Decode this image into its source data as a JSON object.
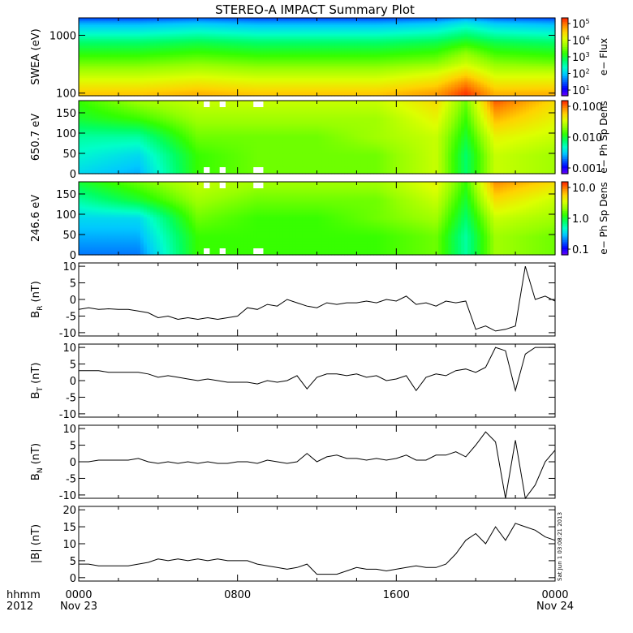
{
  "title": "STEREO-A IMPACT Summary Plot",
  "x_axis": {
    "row1_labels": [
      "hhmm",
      "0000",
      "0800",
      "1600",
      "0000"
    ],
    "row2_labels": [
      "2012",
      "Nov 23",
      "",
      "",
      "Nov 24"
    ],
    "range_hours": [
      0,
      24
    ],
    "major_ticks_hours": [
      0,
      8,
      16,
      24
    ]
  },
  "timestamp": "Sat Jun 1 03:08:21 2013",
  "colors": {
    "colormap": [
      "#6a00ff",
      "#0000ff",
      "#0064ff",
      "#00c8ff",
      "#00ffc8",
      "#00ff64",
      "#32ff00",
      "#96ff00",
      "#dcff00",
      "#ffd200",
      "#ff8200",
      "#ff1e00"
    ],
    "line": "#000000",
    "gap_fill": "#ffffff"
  },
  "chart_data": [
    {
      "type": "heatmap",
      "ylabel": "SWEA (eV)",
      "yscale": "log",
      "ylim": [
        90,
        2000
      ],
      "yticks": [
        "1000",
        "100"
      ],
      "yticks_values": [
        1000,
        100
      ],
      "colorbar": {
        "label": "e− Flux",
        "scale": "log",
        "range": [
          10,
          100000
        ],
        "ticks": [
          {
            "base": "10",
            "exp": "5"
          },
          {
            "base": "10",
            "exp": "4"
          },
          {
            "base": "10",
            "exp": "3"
          },
          {
            "base": "10",
            "exp": "2"
          },
          {
            "base": "10",
            "exp": "1"
          }
        ]
      },
      "energy_levels_eV": [
        100,
        150,
        220,
        330,
        500,
        750,
        1100,
        1600,
        2000
      ],
      "time_hours": [
        0,
        3,
        6,
        9,
        12,
        15,
        18,
        19.5,
        21,
        24
      ],
      "log_flux": [
        [
          4.3,
          4.3,
          4.4,
          4.3,
          4.3,
          4.3,
          4.5,
          4.9,
          4.4,
          4.4
        ],
        [
          4.0,
          4.0,
          4.1,
          4.0,
          4.0,
          4.0,
          4.2,
          4.6,
          4.1,
          4.1
        ],
        [
          3.7,
          3.7,
          3.8,
          3.7,
          3.7,
          3.7,
          3.9,
          4.2,
          3.8,
          3.8
        ],
        [
          3.4,
          3.4,
          3.5,
          3.4,
          3.4,
          3.4,
          3.5,
          3.8,
          3.5,
          3.4
        ],
        [
          3.1,
          3.1,
          3.2,
          3.1,
          3.1,
          3.1,
          3.2,
          3.5,
          3.2,
          3.1
        ],
        [
          2.8,
          2.8,
          2.9,
          2.8,
          2.8,
          2.8,
          2.9,
          3.1,
          2.9,
          2.8
        ],
        [
          2.4,
          2.4,
          2.5,
          2.4,
          2.4,
          2.4,
          2.5,
          2.7,
          2.5,
          2.4
        ],
        [
          2.0,
          2.0,
          2.1,
          2.0,
          2.0,
          2.0,
          2.1,
          2.3,
          2.1,
          2.0
        ],
        [
          1.6,
          1.6,
          1.7,
          1.6,
          1.6,
          1.6,
          1.7,
          1.9,
          1.7,
          1.6
        ]
      ]
    },
    {
      "type": "heatmap",
      "ylabel": "650.7 eV",
      "ylim": [
        0,
        180
      ],
      "yticks": [
        "150",
        "100",
        "50",
        "0"
      ],
      "yticks_values": [
        150,
        100,
        50,
        0
      ],
      "colorbar": {
        "label": "e− Ph Sp Dens",
        "scale": "log",
        "range": [
          0.001,
          0.1
        ],
        "ticks": [
          "0.100",
          "0.010",
          "0.001"
        ]
      },
      "pitch_angle_deg": [
        0,
        45,
        90,
        135,
        180
      ],
      "time_hours": [
        0,
        3,
        6,
        9,
        12,
        15,
        18,
        19.5,
        21,
        24
      ],
      "log_density": [
        [
          -2.4,
          -2.5,
          -1.9,
          -1.8,
          -1.8,
          -1.8,
          -1.6,
          -2.1,
          -1.6,
          -1.7
        ],
        [
          -2.3,
          -2.4,
          -1.9,
          -1.8,
          -1.8,
          -1.8,
          -1.6,
          -2.1,
          -1.6,
          -1.7
        ],
        [
          -2.2,
          -2.2,
          -1.8,
          -1.8,
          -1.8,
          -1.7,
          -1.6,
          -2.0,
          -1.5,
          -1.6
        ],
        [
          -2.0,
          -1.9,
          -1.7,
          -1.7,
          -1.7,
          -1.7,
          -1.5,
          -1.9,
          -1.3,
          -1.5
        ],
        [
          -1.9,
          -1.7,
          -1.6,
          -1.6,
          -1.6,
          -1.6,
          -1.4,
          -1.8,
          -1.1,
          -1.4
        ]
      ]
    },
    {
      "type": "heatmap",
      "ylabel": "246.6 eV",
      "ylim": [
        0,
        180
      ],
      "yticks": [
        "150",
        "100",
        "50",
        "0"
      ],
      "yticks_values": [
        150,
        100,
        50,
        0
      ],
      "colorbar": {
        "label": "e− Ph Sp Dens",
        "scale": "log",
        "range": [
          0.1,
          10
        ],
        "ticks": [
          "10.0",
          "1.0",
          "0.1"
        ]
      },
      "pitch_angle_deg": [
        0,
        45,
        90,
        135,
        180
      ],
      "time_hours": [
        0,
        3,
        6,
        9,
        12,
        15,
        18,
        19.5,
        21,
        24
      ],
      "log_density": [
        [
          -0.6,
          -0.6,
          0.1,
          0.1,
          0.1,
          0.1,
          0.2,
          -0.2,
          0.3,
          0.2
        ],
        [
          -0.5,
          -0.5,
          0.1,
          0.1,
          0.1,
          0.1,
          0.2,
          -0.2,
          0.3,
          0.2
        ],
        [
          -0.4,
          -0.4,
          0.2,
          0.1,
          0.1,
          0.2,
          0.3,
          -0.1,
          0.4,
          0.3
        ],
        [
          -0.2,
          0.0,
          0.3,
          0.2,
          0.2,
          0.2,
          0.4,
          0.0,
          0.6,
          0.4
        ],
        [
          0.0,
          0.2,
          0.4,
          0.3,
          0.3,
          0.3,
          0.5,
          0.1,
          0.8,
          0.6
        ]
      ]
    },
    {
      "type": "line",
      "ylabel": "B",
      "ylabel_sub": "R",
      "ylabel_unit": " (nT)",
      "ylim": [
        -11,
        11
      ],
      "yticks": [
        "10",
        "5",
        "0",
        "-5",
        "-10"
      ],
      "yticks_values": [
        10,
        5,
        0,
        -5,
        -10
      ],
      "x": [
        0,
        0.5,
        1,
        1.5,
        2,
        2.5,
        3,
        3.5,
        4,
        4.5,
        5,
        5.5,
        6,
        6.5,
        7,
        7.5,
        8,
        8.5,
        9,
        9.5,
        10,
        10.5,
        11,
        11.5,
        12,
        12.5,
        13,
        13.5,
        14,
        14.5,
        15,
        15.5,
        16,
        16.5,
        17,
        17.5,
        18,
        18.5,
        19,
        19.5,
        20,
        20.5,
        21,
        21.5,
        22,
        22.5,
        23,
        23.5,
        24
      ],
      "values": [
        -3,
        -2.5,
        -3,
        -2.8,
        -3,
        -3,
        -3.5,
        -4,
        -5.5,
        -5,
        -6,
        -5.5,
        -6,
        -5.5,
        -6,
        -5.5,
        -5,
        -2.5,
        -3,
        -1.5,
        -2,
        0,
        -1,
        -2,
        -2.5,
        -1,
        -1.5,
        -1,
        -1,
        -0.5,
        -1,
        0,
        -0.5,
        1,
        -1.5,
        -1,
        -2,
        -0.5,
        -1,
        -0.5,
        -9,
        -8,
        -9.5,
        -9,
        -8,
        10,
        0,
        1,
        -0.5
      ]
    },
    {
      "type": "line",
      "ylabel": "B",
      "ylabel_sub": "T",
      "ylabel_unit": " (nT)",
      "ylim": [
        -11,
        11
      ],
      "yticks": [
        "10",
        "5",
        "0",
        "-5",
        "-10"
      ],
      "yticks_values": [
        10,
        5,
        0,
        -5,
        -10
      ],
      "x": [
        0,
        0.5,
        1,
        1.5,
        2,
        2.5,
        3,
        3.5,
        4,
        4.5,
        5,
        5.5,
        6,
        6.5,
        7,
        7.5,
        8,
        8.5,
        9,
        9.5,
        10,
        10.5,
        11,
        11.5,
        12,
        12.5,
        13,
        13.5,
        14,
        14.5,
        15,
        15.5,
        16,
        16.5,
        17,
        17.5,
        18,
        18.5,
        19,
        19.5,
        20,
        20.5,
        21,
        21.5,
        22,
        22.5,
        23,
        23.5,
        24
      ],
      "values": [
        3,
        3,
        3,
        2.5,
        2.5,
        2.5,
        2.5,
        2,
        1,
        1.5,
        1,
        0.5,
        0,
        0.5,
        0,
        -0.5,
        -0.5,
        -0.5,
        -1,
        0,
        -0.5,
        0,
        1.5,
        -2.5,
        1,
        2,
        2,
        1.5,
        2,
        1,
        1.5,
        0,
        0.5,
        1.5,
        -3,
        1,
        2,
        1.5,
        3,
        3.5,
        2.5,
        4,
        10,
        9,
        -3,
        8,
        10,
        10,
        10
      ]
    },
    {
      "type": "line",
      "ylabel": "B",
      "ylabel_sub": "N",
      "ylabel_unit": " (nT)",
      "ylim": [
        -11,
        11
      ],
      "yticks": [
        "10",
        "5",
        "0",
        "-5",
        "-10"
      ],
      "yticks_values": [
        10,
        5,
        0,
        -5,
        -10
      ],
      "x": [
        0,
        0.5,
        1,
        1.5,
        2,
        2.5,
        3,
        3.5,
        4,
        4.5,
        5,
        5.5,
        6,
        6.5,
        7,
        7.5,
        8,
        8.5,
        9,
        9.5,
        10,
        10.5,
        11,
        11.5,
        12,
        12.5,
        13,
        13.5,
        14,
        14.5,
        15,
        15.5,
        16,
        16.5,
        17,
        17.5,
        18,
        18.5,
        19,
        19.5,
        20,
        20.5,
        21,
        21.5,
        22,
        22.5,
        23,
        23.5,
        24
      ],
      "values": [
        0,
        0,
        0.5,
        0.5,
        0.5,
        0.5,
        1,
        0,
        -0.5,
        0,
        -0.5,
        0,
        -0.5,
        0,
        -0.5,
        -0.5,
        0,
        0,
        -0.5,
        0.5,
        0,
        -0.5,
        0,
        2.5,
        0,
        1.5,
        2,
        1,
        1,
        0.5,
        1,
        0.5,
        1,
        2,
        0.5,
        0.5,
        2,
        2,
        3,
        1.5,
        5,
        9,
        6,
        -11,
        6.5,
        -11,
        -7,
        0,
        3.5
      ]
    },
    {
      "type": "line",
      "ylabel": "|B| (nT)",
      "ylim": [
        -1,
        21
      ],
      "yticks": [
        "20",
        "15",
        "10",
        "5",
        "0"
      ],
      "yticks_values": [
        20,
        15,
        10,
        5,
        0
      ],
      "x": [
        0,
        0.5,
        1,
        1.5,
        2,
        2.5,
        3,
        3.5,
        4,
        4.5,
        5,
        5.5,
        6,
        6.5,
        7,
        7.5,
        8,
        8.5,
        9,
        9.5,
        10,
        10.5,
        11,
        11.5,
        12,
        12.5,
        13,
        13.5,
        14,
        14.5,
        15,
        15.5,
        16,
        16.5,
        17,
        17.5,
        18,
        18.5,
        19,
        19.5,
        20,
        20.5,
        21,
        21.5,
        22,
        22.5,
        23,
        23.5,
        24
      ],
      "values": [
        4,
        4,
        3.5,
        3.5,
        3.5,
        3.5,
        4,
        4.5,
        5.5,
        5,
        5.5,
        5,
        5.5,
        5,
        5.5,
        5,
        5,
        5,
        4,
        3.5,
        3,
        2.5,
        3,
        4,
        1,
        1,
        1,
        2,
        3,
        2.5,
        2.5,
        2,
        2.5,
        3,
        3.5,
        3,
        3,
        4,
        7,
        11,
        13,
        10,
        15,
        11,
        16,
        15,
        14,
        12,
        11
      ]
    }
  ]
}
